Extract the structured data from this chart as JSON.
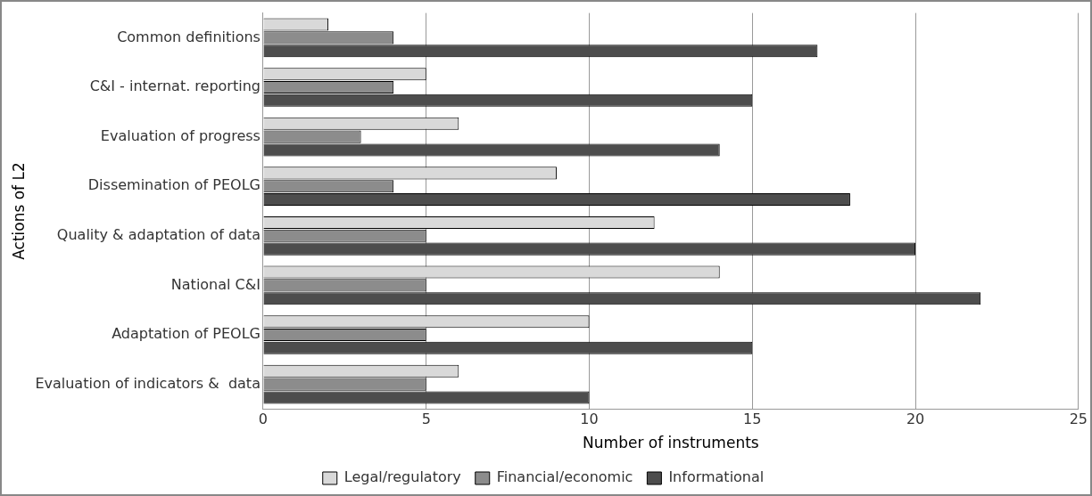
{
  "chart_data": {
    "type": "bar",
    "orientation": "horizontal",
    "xlabel": "Number of instruments",
    "ylabel": "Actions of L2",
    "categories": [
      "Common definitions",
      "C&I - internat. reporting",
      "Evaluation of progress",
      "Dissemination of PEOLG",
      "Quality & adaptation of data",
      "National C&I",
      "Adaptation of PEOLG",
      "Evaluation of indicators &  data"
    ],
    "series": [
      {
        "name": "Legal/regulatory",
        "color": "#d9d9d9",
        "values": [
          2,
          5,
          6,
          9,
          12,
          14,
          10,
          6
        ]
      },
      {
        "name": "Financial/economic",
        "color": "#8c8c8c",
        "values": [
          4,
          4,
          3,
          4,
          5,
          5,
          5,
          5
        ]
      },
      {
        "name": "Informational",
        "color": "#4d4d4d",
        "values": [
          17,
          15,
          14,
          18,
          20,
          22,
          15,
          10
        ]
      }
    ],
    "xlim": [
      0,
      25
    ],
    "xticks": [
      0,
      5,
      10,
      15,
      20,
      25
    ],
    "grid": "x",
    "legend": "bottom"
  }
}
